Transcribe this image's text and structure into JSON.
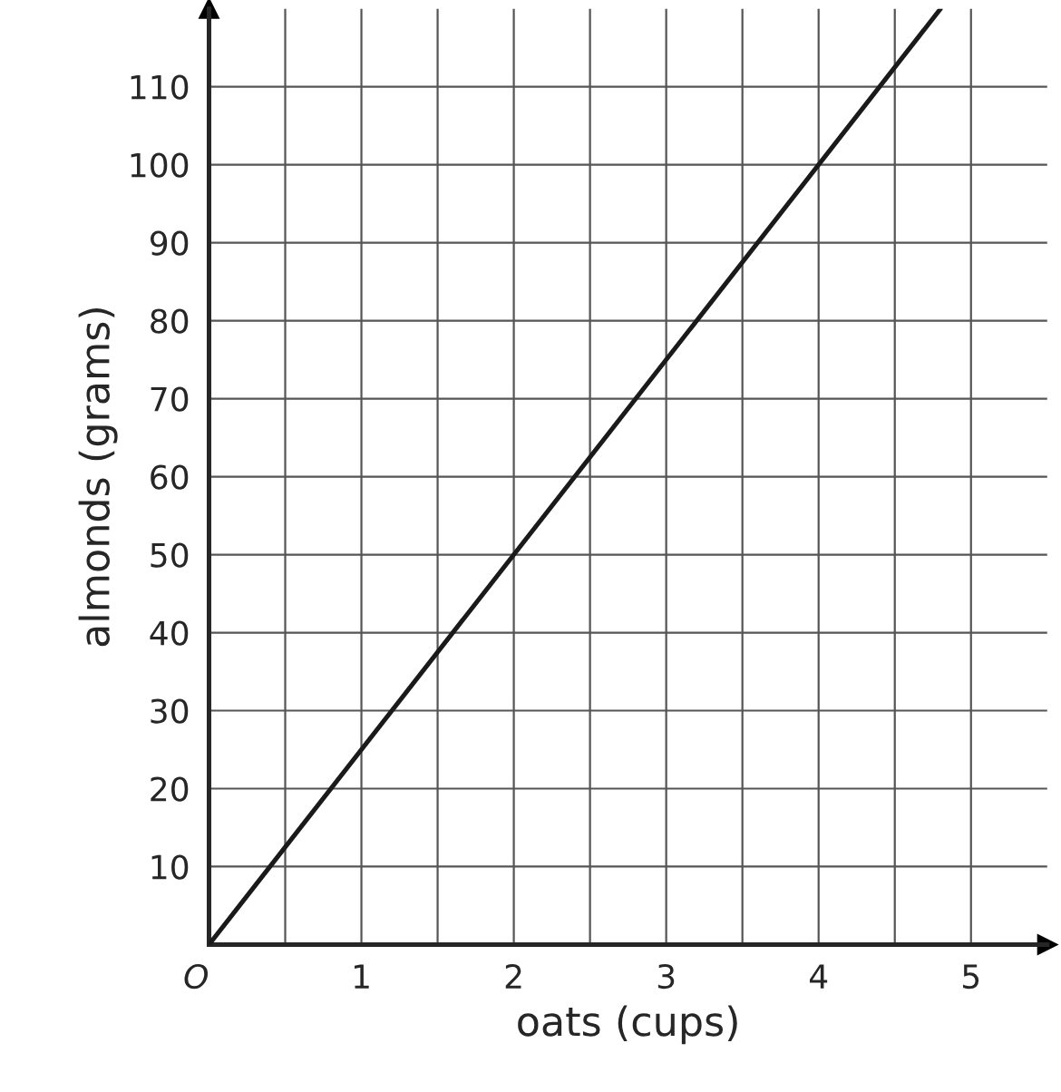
{
  "chart_data": {
    "type": "line",
    "xlabel": "oats (cups)",
    "ylabel": "almonds (grams)",
    "x": [
      0,
      4.8
    ],
    "series": [
      {
        "color": "#1a1a1a",
        "values": [
          0,
          120
        ]
      }
    ],
    "xlim": [
      0,
      5.5
    ],
    "ylim": [
      0,
      120
    ],
    "xticks": [
      {
        "value": 0,
        "label": "O"
      },
      {
        "value": 0.5,
        "label": null
      },
      1,
      {
        "value": 1.5,
        "label": null
      },
      2,
      {
        "value": 2.5,
        "label": null
      },
      3,
      {
        "value": 3.5,
        "label": null
      },
      4,
      {
        "value": 4.5,
        "label": null
      },
      5
    ],
    "yticks": [
      10,
      20,
      30,
      40,
      50,
      60,
      70,
      80,
      90,
      100,
      110
    ],
    "grid": true,
    "marker": "none",
    "line_style": "solid"
  }
}
